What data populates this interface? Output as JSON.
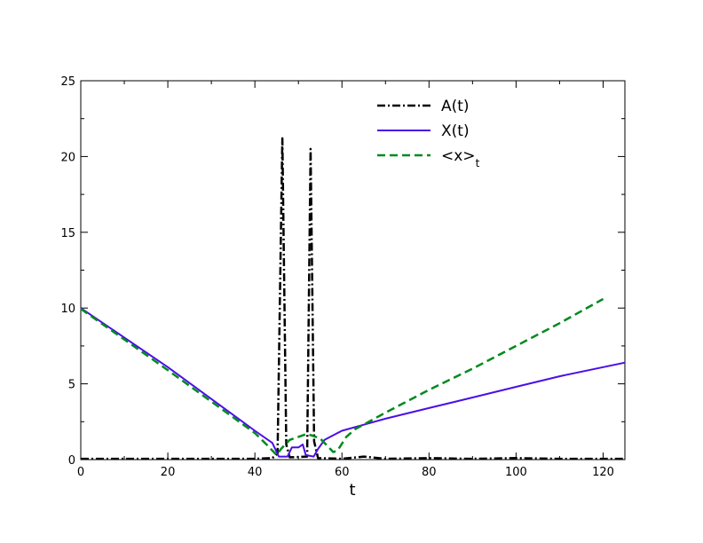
{
  "chart_data": {
    "type": "line",
    "title": "",
    "xlabel": "t",
    "ylabel": "",
    "xlim": [
      0,
      125
    ],
    "ylim": [
      0,
      25
    ],
    "x_ticks": [
      0,
      20,
      40,
      60,
      80,
      100,
      120
    ],
    "y_ticks": [
      0,
      5,
      10,
      15,
      20,
      25
    ],
    "grid": false,
    "legend": {
      "placement": "top-right",
      "entries": [
        {
          "label": "A(t)",
          "label_sub": ""
        },
        {
          "label": "X(t)",
          "label_sub": ""
        },
        {
          "label": "<x>",
          "label_sub": "t"
        }
      ]
    },
    "series": [
      {
        "name": "A(t)",
        "color": "#000000",
        "style": "dash-dot",
        "points": [
          [
            0,
            0.05
          ],
          [
            20,
            0.05
          ],
          [
            40,
            0.05
          ],
          [
            44,
            0.1
          ],
          [
            45.2,
            0.4
          ],
          [
            46.3,
            21.2
          ],
          [
            47.2,
            1.0
          ],
          [
            48,
            0.15
          ],
          [
            52,
            0.2
          ],
          [
            52.8,
            20.5
          ],
          [
            53.6,
            1.2
          ],
          [
            54.5,
            0.1
          ],
          [
            60,
            0.05
          ],
          [
            65,
            0.2
          ],
          [
            70,
            0.05
          ],
          [
            80,
            0.1
          ],
          [
            90,
            0.05
          ],
          [
            100,
            0.1
          ],
          [
            110,
            0.05
          ],
          [
            125,
            0.05
          ]
        ]
      },
      {
        "name": "X(t)",
        "color": "#4b0fe6",
        "style": "solid",
        "points": [
          [
            0,
            10
          ],
          [
            20,
            6.1
          ],
          [
            40,
            1.9
          ],
          [
            44,
            1.1
          ],
          [
            45.5,
            0.2
          ],
          [
            47.5,
            0.2
          ],
          [
            48.5,
            0.8
          ],
          [
            50,
            0.8
          ],
          [
            51,
            1.0
          ],
          [
            51.7,
            0.3
          ],
          [
            53.5,
            0.2
          ],
          [
            54.5,
            0.7
          ],
          [
            56,
            1.3
          ],
          [
            60,
            1.9
          ],
          [
            65,
            2.3
          ],
          [
            70,
            2.7
          ],
          [
            80,
            3.4
          ],
          [
            90,
            4.1
          ],
          [
            100,
            4.8
          ],
          [
            110,
            5.5
          ],
          [
            125,
            6.4
          ]
        ]
      },
      {
        "name": "<x>t",
        "color": "#008a1e",
        "style": "dashed",
        "points": [
          [
            0,
            9.95
          ],
          [
            20,
            5.9
          ],
          [
            40,
            1.75
          ],
          [
            43,
            0.9
          ],
          [
            45,
            0.3
          ],
          [
            46,
            0.7
          ],
          [
            48,
            1.3
          ],
          [
            52,
            1.7
          ],
          [
            55,
            1.4
          ],
          [
            57,
            0.8
          ],
          [
            58,
            0.5
          ],
          [
            59,
            0.6
          ],
          [
            61,
            1.5
          ],
          [
            63,
            2.0
          ],
          [
            70,
            3.1
          ],
          [
            80,
            4.6
          ],
          [
            90,
            6.0
          ],
          [
            100,
            7.5
          ],
          [
            110,
            9.0
          ],
          [
            120,
            10.6
          ]
        ]
      }
    ]
  }
}
